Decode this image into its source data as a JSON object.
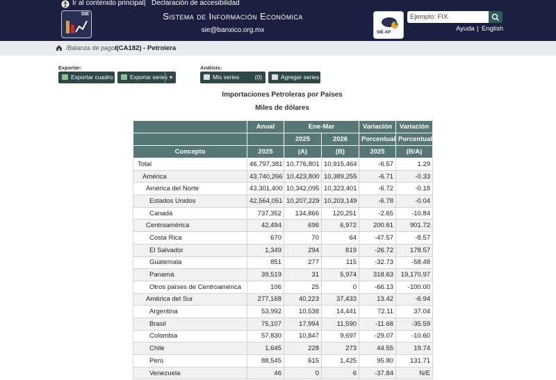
{
  "header": {
    "skip_link": "Ir al contenido principal",
    "separator": "|",
    "accessibility_link": "Declaración de accesibilidad",
    "logo_label": "SIE",
    "title": "Sistema de Información Económica",
    "email": "sie@banxico.org.mx",
    "logo2_label": "SIE-AP",
    "search_placeholder": "Ejemplo: FIX",
    "help_link": "Ayuda",
    "language_link": "English"
  },
  "breadcrumb": [
    "/Balanza de pagos",
    "/(CA182) - Petrolera"
  ],
  "toolbar": {
    "export_label": "Exportar:",
    "export_table": "Exportar cuadro",
    "export_series": "Exportar series",
    "analysis_label": "Análisis:",
    "my_series": "Mis series",
    "my_series_count": "(0)",
    "add_series": "Agregar series"
  },
  "table": {
    "title": "Importaciones Petroleras por Países",
    "subtitle": "Miles de dólares",
    "header": [
      [
        "Anual",
        "Ene-Mar",
        "Variación",
        "Variación"
      ],
      [
        "2025",
        "2026",
        "Porcentual",
        "Porcentual"
      ],
      [
        "Concepto",
        "2025",
        "(A)",
        "(B)",
        "2025",
        "(B/A)"
      ]
    ],
    "rows": [
      [
        "Total",
        "46,797,381",
        "10,776,801",
        "10,915,464",
        "-6.57",
        "1.29"
      ],
      [
        "América",
        "43,740,266",
        "10,423,800",
        "10,389,255",
        "-6.71",
        "-0.33"
      ],
      [
        "América del Norte",
        "43,301,400",
        "10,342,095",
        "10,323,401",
        "-6.72",
        "-0.18"
      ],
      [
        "Estados Unidos",
        "42,564,051",
        "10,207,229",
        "10,203,149",
        "-6.78",
        "-0.04"
      ],
      [
        "Canadá",
        "737,352",
        "134,866",
        "120,251",
        "-2.65",
        "-10.84"
      ],
      [
        "Centroamérica",
        "42,494",
        "696",
        "6,972",
        "200.61",
        "901.72"
      ],
      [
        "Costa Rica",
        "670",
        "70",
        "64",
        "-47.57",
        "-8.57"
      ],
      [
        "El Salvador",
        "1,349",
        "294",
        "819",
        "-26.72",
        "178.57"
      ],
      [
        "Guatemala",
        "851",
        "277",
        "115",
        "-32.73",
        "-58.48"
      ],
      [
        "Panamá",
        "39,519",
        "31",
        "5,974",
        "318.63",
        "19,170.97"
      ],
      [
        "Otros países de Centroamérica",
        "106",
        "25",
        "0",
        "-66.13",
        "-100.00"
      ],
      [
        "América del Sur",
        "277,168",
        "40,223",
        "37,433",
        "13.42",
        "-6.94"
      ],
      [
        "Argentina",
        "53,992",
        "10,538",
        "14,441",
        "72.11",
        "37.04"
      ],
      [
        "Brasil",
        "75,107",
        "17,994",
        "11,590",
        "-11.68",
        "-35.59"
      ],
      [
        "Colombia",
        "57,830",
        "10,847",
        "9,697",
        "-29.07",
        "-10.60"
      ],
      [
        "Chile",
        "1,645",
        "228",
        "273",
        "44.55",
        "19.74"
      ],
      [
        "Perú",
        "88,545",
        "615",
        "1,425",
        "95.80",
        "131.71"
      ],
      [
        "Venezuela",
        "46",
        "0",
        "6",
        "-37.84",
        "N/E"
      ]
    ]
  }
}
